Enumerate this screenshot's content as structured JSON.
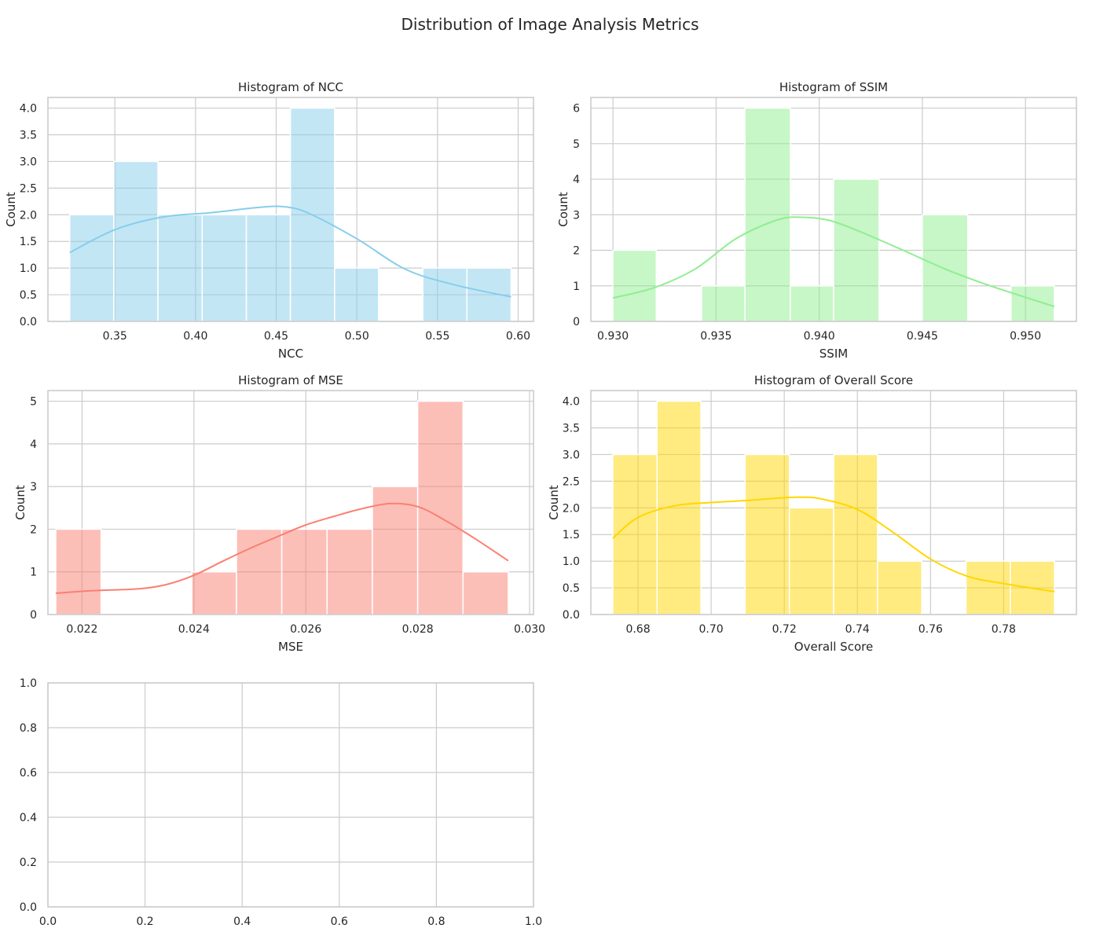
{
  "figure": {
    "title": "Distribution of Image Analysis Metrics"
  },
  "chart_data": [
    {
      "type": "bar",
      "title": "Histogram of NCC",
      "xlabel": "NCC",
      "ylabel": "Count",
      "color": "#87CEEB",
      "grid": true,
      "xlim": [
        0.3085,
        0.6095
      ],
      "ylim": [
        0,
        4.2
      ],
      "xticks": [
        0.35,
        0.4,
        0.45,
        0.5,
        0.55,
        0.6
      ],
      "xtick_labels": [
        "0.35",
        "0.40",
        "0.45",
        "0.50",
        "0.55",
        "0.60"
      ],
      "yticks": [
        0,
        0.5,
        1,
        1.5,
        2,
        2.5,
        3,
        3.5,
        4
      ],
      "ytick_labels": [
        "0.0",
        "0.5",
        "1.0",
        "1.5",
        "2.0",
        "2.5",
        "3.0",
        "3.5",
        "4.0"
      ],
      "bin_edges": [
        0.322,
        0.3494,
        0.3767,
        0.4041,
        0.4315,
        0.4588,
        0.4862,
        0.5135,
        0.5409,
        0.5682,
        0.5956
      ],
      "counts": [
        2,
        3,
        2,
        2,
        2,
        4,
        1,
        0,
        1,
        1
      ],
      "kde": {
        "x": [
          0.322,
          0.35,
          0.38,
          0.41,
          0.44,
          0.455,
          0.47,
          0.5,
          0.53,
          0.56,
          0.5956
        ],
        "y": [
          1.29,
          1.72,
          1.96,
          2.04,
          2.14,
          2.15,
          2.03,
          1.55,
          0.98,
          0.69,
          0.46
        ]
      }
    },
    {
      "type": "bar",
      "title": "Histogram of SSIM",
      "xlabel": "SSIM",
      "ylabel": "Count",
      "color": "#90EE90",
      "grid": true,
      "xlim": [
        0.92893,
        0.95247
      ],
      "ylim": [
        0,
        6.3
      ],
      "xticks": [
        0.93,
        0.935,
        0.94,
        0.945,
        0.95
      ],
      "xtick_labels": [
        "0.930",
        "0.935",
        "0.940",
        "0.945",
        "0.950"
      ],
      "yticks": [
        0,
        1,
        2,
        3,
        4,
        5,
        6
      ],
      "ytick_labels": [
        "0",
        "1",
        "2",
        "3",
        "4",
        "5",
        "6"
      ],
      "bin_edges": [
        0.93,
        0.9321,
        0.9343,
        0.9364,
        0.9386,
        0.9407,
        0.9429,
        0.945,
        0.9472,
        0.9493,
        0.9514
      ],
      "counts": [
        2,
        0,
        1,
        6,
        1,
        4,
        0,
        3,
        0,
        1
      ],
      "kde": {
        "x": [
          0.93,
          0.932,
          0.934,
          0.936,
          0.938,
          0.9392,
          0.9405,
          0.942,
          0.944,
          0.946,
          0.948,
          0.9502,
          0.9514
        ],
        "y": [
          0.66,
          0.95,
          1.48,
          2.34,
          2.86,
          2.93,
          2.84,
          2.52,
          2.02,
          1.5,
          1.06,
          0.64,
          0.42
        ]
      }
    },
    {
      "type": "bar",
      "title": "Histogram of MSE",
      "xlabel": "MSE",
      "ylabel": "Count",
      "color": "#FA8072",
      "grid": true,
      "xlim": [
        0.02139,
        0.03007
      ],
      "ylim": [
        0,
        5.25
      ],
      "xticks": [
        0.022,
        0.024,
        0.026,
        0.028,
        0.03
      ],
      "xtick_labels": [
        "0.022",
        "0.024",
        "0.026",
        "0.028",
        "0.030"
      ],
      "yticks": [
        0,
        1,
        2,
        3,
        4,
        5
      ],
      "ytick_labels": [
        "0",
        "1",
        "2",
        "3",
        "4",
        "5"
      ],
      "bin_edges": [
        0.02153,
        0.02234,
        0.02315,
        0.02396,
        0.02476,
        0.02557,
        0.02638,
        0.02719,
        0.028,
        0.02881,
        0.02962
      ],
      "counts": [
        2,
        0,
        0,
        1,
        2,
        2,
        2,
        3,
        5,
        1
      ],
      "kde": {
        "x": [
          0.02153,
          0.0222,
          0.023,
          0.0235,
          0.024,
          0.0245,
          0.025,
          0.0255,
          0.026,
          0.0265,
          0.027,
          0.0275,
          0.028,
          0.0285,
          0.029,
          0.02962
        ],
        "y": [
          0.5,
          0.56,
          0.6,
          0.7,
          0.92,
          1.24,
          1.55,
          1.83,
          2.1,
          2.3,
          2.48,
          2.6,
          2.53,
          2.2,
          1.8,
          1.26
        ]
      }
    },
    {
      "type": "bar",
      "title": "Histogram of Overall Score",
      "xlabel": "Overall Score",
      "ylabel": "Count",
      "color": "#FFD700",
      "grid": true,
      "xlim": [
        0.6671,
        0.7999
      ],
      "ylim": [
        0,
        4.2
      ],
      "xticks": [
        0.68,
        0.7,
        0.72,
        0.74,
        0.76,
        0.78
      ],
      "xtick_labels": [
        "0.68",
        "0.70",
        "0.72",
        "0.74",
        "0.76",
        "0.78"
      ],
      "yticks": [
        0,
        0.5,
        1,
        1.5,
        2,
        2.5,
        3,
        3.5,
        4
      ],
      "ytick_labels": [
        "0.0",
        "0.5",
        "1.0",
        "1.5",
        "2.0",
        "2.5",
        "3.0",
        "3.5",
        "4.0"
      ],
      "bin_edges": [
        0.6731,
        0.6852,
        0.6972,
        0.7093,
        0.7214,
        0.7335,
        0.7455,
        0.7576,
        0.7697,
        0.7818,
        0.7939
      ],
      "counts": [
        3,
        4,
        0,
        3,
        2,
        3,
        1,
        0,
        1,
        1
      ],
      "kde": {
        "x": [
          0.6731,
          0.68,
          0.69,
          0.7,
          0.71,
          0.72,
          0.725,
          0.73,
          0.74,
          0.75,
          0.76,
          0.77,
          0.78,
          0.7939
        ],
        "y": [
          1.43,
          1.82,
          2.04,
          2.1,
          2.14,
          2.19,
          2.2,
          2.17,
          1.97,
          1.53,
          1.04,
          0.72,
          0.58,
          0.43
        ]
      }
    },
    {
      "type": "scatter",
      "title": "",
      "xlabel": "",
      "ylabel": "",
      "grid": true,
      "xlim": [
        0,
        1
      ],
      "ylim": [
        0,
        1
      ],
      "xticks": [
        0,
        0.2,
        0.4,
        0.6,
        0.8,
        1.0
      ],
      "xtick_labels": [
        "0.0",
        "0.2",
        "0.4",
        "0.6",
        "0.8",
        "1.0"
      ],
      "yticks": [
        0,
        0.2,
        0.4,
        0.6,
        0.8,
        1.0
      ],
      "ytick_labels": [
        "0.0",
        "0.2",
        "0.4",
        "0.6",
        "0.8",
        "1.0"
      ],
      "bin_edges": [],
      "counts": [],
      "kde": null
    }
  ]
}
